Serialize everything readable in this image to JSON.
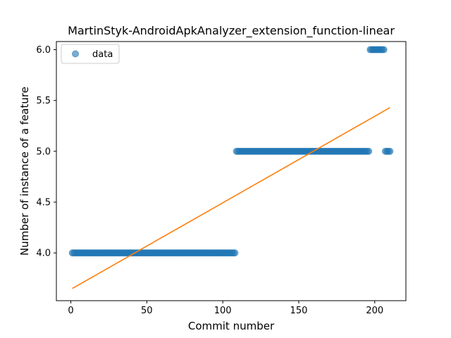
{
  "chart_data": {
    "type": "scatter",
    "title": "MartinStyk-AndroidApkAnalyzer_extension_function-linear",
    "xlabel": "Commit number",
    "ylabel": "Number of instance of a feature",
    "xlim": [
      -9.5,
      220.5
    ],
    "ylim": [
      3.53,
      6.08
    ],
    "xticks": [
      0,
      50,
      100,
      150,
      200
    ],
    "xtick_labels": [
      "0",
      "50",
      "100",
      "150",
      "200"
    ],
    "yticks": [
      4.0,
      4.5,
      5.0,
      5.5,
      6.0
    ],
    "ytick_labels": [
      "4.0",
      "4.5",
      "5.0",
      "5.5",
      "6.0"
    ],
    "grid": false,
    "legend_position": "top-left",
    "series": [
      {
        "name": "data",
        "kind": "scatter",
        "color": "#1f77b4",
        "segments": [
          {
            "x_start": 1,
            "x_end": 108,
            "y": 4.0
          },
          {
            "x_start": 109,
            "x_end": 196,
            "y": 5.0
          },
          {
            "x_start": 197,
            "x_end": 206,
            "y": 6.0
          },
          {
            "x_start": 207,
            "x_end": 210,
            "y": 5.0
          }
        ]
      },
      {
        "kind": "line",
        "color": "#ff7f0e",
        "x": [
          1,
          210
        ],
        "y": [
          3.65,
          5.43
        ]
      }
    ]
  }
}
